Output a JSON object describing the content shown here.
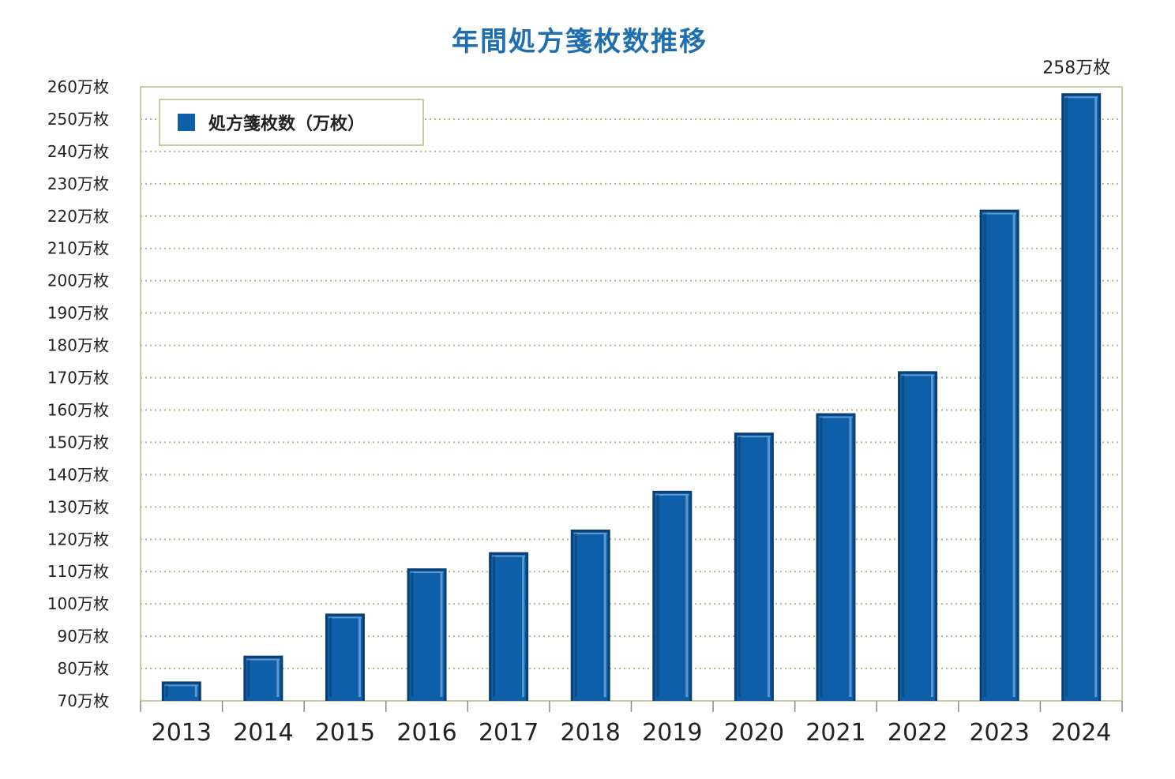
{
  "chart_data": {
    "type": "bar",
    "title": "年間処方箋枚数推移",
    "categories": [
      "2013",
      "2014",
      "2015",
      "2016",
      "2017",
      "2018",
      "2019",
      "2020",
      "2021",
      "2022",
      "2023",
      "2024"
    ],
    "series": [
      {
        "name": "処方箋枚数（万枚）",
        "values": [
          76,
          84,
          97,
          111,
          116,
          123,
          135,
          153,
          159,
          172,
          222,
          258
        ]
      }
    ],
    "ylim": [
      70,
      260
    ],
    "ytick_step": 10,
    "ytick_suffix": "万枚",
    "ytick_labels": [
      "70万枚",
      "80万枚",
      "90万枚",
      "100万枚",
      "110万枚",
      "120万枚",
      "130万枚",
      "140万枚",
      "150万枚",
      "160万枚",
      "170万枚",
      "180万枚",
      "190万枚",
      "200万枚",
      "210万枚",
      "220万枚",
      "230万枚",
      "240万枚",
      "250万枚",
      "260万枚"
    ],
    "annotation": "258万枚",
    "legend": {
      "label": "処方箋枚数（万枚）",
      "placement": "top-left"
    },
    "grid": true,
    "colors": {
      "bar": "#0f5fa8",
      "bar_highlight": "#5a98d2",
      "bar_shadow": "#0a3f73",
      "title": "#1f6fb0",
      "grid": "#b4b98a",
      "frame": "#c8cc9e"
    }
  }
}
